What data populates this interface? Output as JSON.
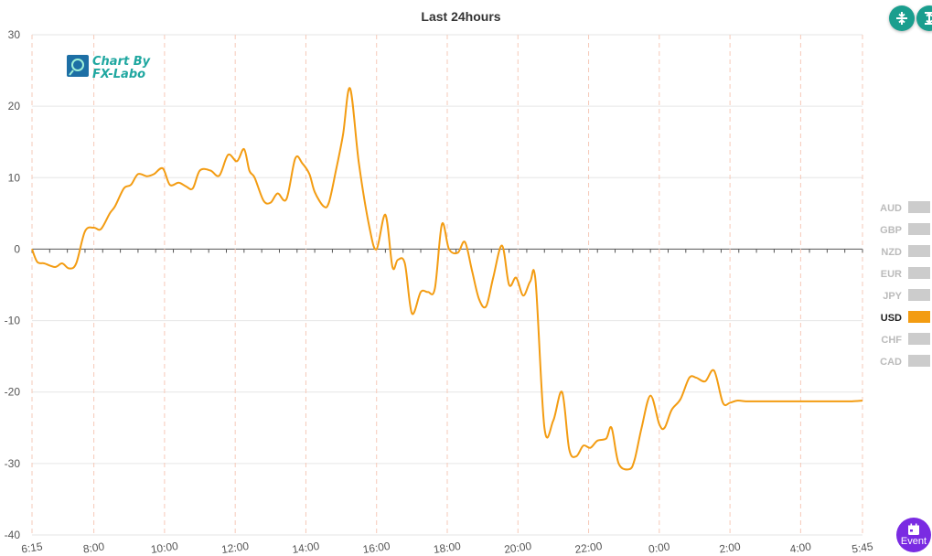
{
  "chart_data": {
    "type": "line",
    "title": "Last 24hours",
    "ylim": [
      -40,
      30
    ],
    "yticks": [
      "30",
      "20",
      "10",
      "0",
      "-10",
      "-20",
      "-30",
      "-40"
    ],
    "ytick_values": [
      30,
      20,
      10,
      0,
      -10,
      -20,
      -30,
      -40
    ],
    "xlim": [
      6.25,
      29.75
    ],
    "xticks": [
      "6:15",
      "8:00",
      "10:00",
      "12:00",
      "14:00",
      "16:00",
      "18:00",
      "20:00",
      "22:00",
      "0:00",
      "2:00",
      "4:00",
      "5:45"
    ],
    "xtick_values": [
      6.25,
      8,
      10,
      12,
      14,
      16,
      18,
      20,
      22,
      24,
      26,
      28,
      29.75
    ],
    "grid": true,
    "legend_position": "right",
    "series": [
      {
        "name": "USD",
        "color": "#f39c12",
        "x": [
          6.25,
          6.4,
          6.6,
          6.9,
          7.1,
          7.3,
          7.5,
          7.75,
          8.0,
          8.2,
          8.45,
          8.6,
          8.85,
          9.05,
          9.25,
          9.5,
          9.7,
          9.95,
          10.15,
          10.4,
          10.6,
          10.8,
          11.0,
          11.3,
          11.55,
          11.8,
          12.05,
          12.25,
          12.4,
          12.55,
          12.8,
          13.0,
          13.2,
          13.45,
          13.7,
          13.9,
          14.1,
          14.25,
          14.5,
          14.65,
          14.85,
          15.05,
          15.25,
          15.5,
          15.8,
          16.0,
          16.25,
          16.45,
          16.6,
          16.8,
          17.0,
          17.25,
          17.45,
          17.65,
          17.85,
          18.05,
          18.3,
          18.5,
          18.7,
          18.9,
          19.1,
          19.3,
          19.55,
          19.75,
          19.95,
          20.15,
          20.35,
          20.5,
          20.75,
          21.0,
          21.25,
          21.45,
          21.65,
          21.85,
          22.05,
          22.25,
          22.5,
          22.65,
          22.85,
          23.15,
          23.3,
          23.5,
          23.75,
          24.0,
          24.15,
          24.35,
          24.6,
          24.85,
          25.05,
          25.3,
          25.55,
          25.8,
          26.0,
          26.2,
          26.45,
          26.65,
          26.85,
          27.05,
          27.3,
          27.55,
          27.8,
          28.05,
          28.3,
          28.55,
          28.75,
          28.95,
          29.2,
          29.45,
          29.75
        ],
        "y": [
          0,
          -1.8,
          -2.0,
          -2.5,
          -2.0,
          -2.7,
          -2.0,
          2.5,
          3.0,
          2.8,
          5.0,
          6.0,
          8.5,
          9.0,
          10.5,
          10.2,
          10.5,
          11.3,
          9.0,
          9.3,
          8.8,
          8.5,
          11.0,
          11.0,
          10.3,
          13.2,
          12.3,
          14.0,
          11.0,
          10.0,
          6.8,
          6.5,
          7.8,
          7.0,
          12.7,
          12.0,
          10.5,
          8.0,
          6.0,
          6.5,
          11.0,
          16.0,
          22.5,
          12.0,
          3.0,
          0,
          4.8,
          -2.5,
          -1.5,
          -2.0,
          -9.0,
          -6.0,
          -6.0,
          -5.5,
          3.5,
          0,
          -0.5,
          1.0,
          -3.0,
          -7.0,
          -8.0,
          -4.0,
          0.5,
          -5.0,
          -4.0,
          -6.5,
          -4.5,
          -4.5,
          -25.0,
          -24.0,
          -20.0,
          -28.0,
          -29.0,
          -27.5,
          -27.8,
          -26.8,
          -26.5,
          -25.0,
          -30.0,
          -30.8,
          -29.5,
          -25.0,
          -20.5,
          -24.5,
          -25.0,
          -22.5,
          -21.0,
          -18.0,
          -18.0,
          -18.5,
          -17.0,
          -21.5,
          -21.5,
          -21.2,
          -21.3,
          -21.3,
          -21.3,
          -21.3,
          -21.3,
          -21.3,
          -21.3,
          -21.3,
          -21.3,
          -21.3,
          -21.3,
          -21.3,
          -21.3,
          -21.3,
          -21.2
        ]
      }
    ],
    "legend": [
      {
        "label": "AUD",
        "active": false
      },
      {
        "label": "GBP",
        "active": false
      },
      {
        "label": "NZD",
        "active": false
      },
      {
        "label": "EUR",
        "active": false
      },
      {
        "label": "JPY",
        "active": false
      },
      {
        "label": "USD",
        "active": true
      },
      {
        "label": "CHF",
        "active": false
      },
      {
        "label": "CAD",
        "active": false
      }
    ]
  },
  "colors": {
    "line": "#f39c12",
    "legend_active_text": "#222222",
    "legend_inactive_text": "#bbbbbb",
    "legend_inactive_swatch": "#cccccc",
    "grid": "#e6e6e6",
    "vgrid": "#f6c9b8",
    "teal_button": "#1a9e8e",
    "event_button": "#7a2be2"
  },
  "brand": {
    "line1": "Chart By",
    "line2": "FX-Labo"
  },
  "buttons": {
    "event_label": "Event",
    "collapse_icon": "collapse-vertical-icon",
    "expand_icon": "expand-vertical-icon",
    "event_icon": "calendar-icon"
  }
}
